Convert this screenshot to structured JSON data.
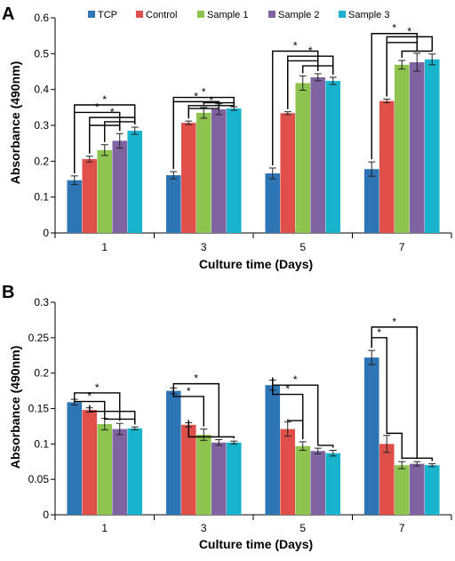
{
  "chart_data": [
    {
      "type": "bar",
      "panel": "A",
      "xlabel": "Culture time (Days)",
      "ylabel": "Absorbance (490nm)",
      "ylim": [
        0,
        0.6
      ],
      "yticks": [
        "0",
        "0.1",
        "0.2",
        "0.3",
        "0.4",
        "0.5",
        "0.6"
      ],
      "categories": [
        "1",
        "3",
        "5",
        "7"
      ],
      "legend_position": "top",
      "series": [
        {
          "name": "TCP",
          "color": "#2e75b6",
          "values": [
            0.147,
            0.161,
            0.166,
            0.178
          ],
          "errors": [
            0.012,
            0.01,
            0.015,
            0.02
          ]
        },
        {
          "name": "Control",
          "color": "#e0504a",
          "values": [
            0.206,
            0.307,
            0.334,
            0.368
          ],
          "errors": [
            0.008,
            0.005,
            0.004,
            0.005
          ]
        },
        {
          "name": "Sample 1",
          "color": "#8fc350",
          "values": [
            0.231,
            0.335,
            0.418,
            0.469
          ],
          "errors": [
            0.015,
            0.015,
            0.02,
            0.012
          ]
        },
        {
          "name": "Sample 2",
          "color": "#8064a2",
          "values": [
            0.257,
            0.345,
            0.434,
            0.476
          ],
          "errors": [
            0.02,
            0.015,
            0.01,
            0.025
          ]
        },
        {
          "name": "Sample 3",
          "color": "#18b3cc",
          "values": [
            0.285,
            0.347,
            0.424,
            0.484
          ],
          "errors": [
            0.01,
            0.005,
            0.01,
            0.015
          ]
        }
      ],
      "significance_marker": "*"
    },
    {
      "type": "bar",
      "panel": "B",
      "xlabel": "Culture time (Days)",
      "ylabel": "Absorbance (490nm)",
      "ylim": [
        0,
        0.3
      ],
      "yticks": [
        "0",
        "0.05",
        "0.1",
        "0.15",
        "0.2",
        "0.25",
        "0.3"
      ],
      "categories": [
        "1",
        "3",
        "5",
        "7"
      ],
      "series": [
        {
          "name": "TCP",
          "color": "#2e75b6",
          "values": [
            0.159,
            0.175,
            0.183,
            0.222
          ],
          "errors": [
            0.004,
            0.004,
            0.007,
            0.01
          ]
        },
        {
          "name": "Control",
          "color": "#e0504a",
          "values": [
            0.148,
            0.127,
            0.121,
            0.1
          ],
          "errors": [
            0.003,
            0.003,
            0.01,
            0.012
          ]
        },
        {
          "name": "Sample 1",
          "color": "#8fc350",
          "values": [
            0.128,
            0.113,
            0.097,
            0.07
          ],
          "errors": [
            0.008,
            0.008,
            0.006,
            0.005
          ]
        },
        {
          "name": "Sample 2",
          "color": "#8064a2",
          "values": [
            0.121,
            0.102,
            0.09,
            0.072
          ],
          "errors": [
            0.008,
            0.004,
            0.004,
            0.003
          ]
        },
        {
          "name": "Sample 3",
          "color": "#18b3cc",
          "values": [
            0.122,
            0.102,
            0.087,
            0.07
          ],
          "errors": [
            0.002,
            0.002,
            0.004,
            0.002
          ]
        }
      ],
      "significance_marker": "*"
    }
  ]
}
